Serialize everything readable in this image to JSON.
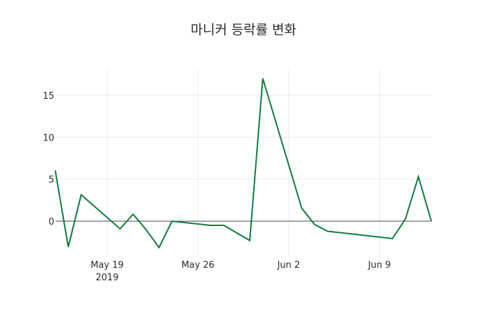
{
  "chart_data": {
    "type": "line",
    "title": "마니커 등락률 변화",
    "xlabel": "",
    "ylabel": "",
    "x": [
      "2019-05-15",
      "2019-05-16",
      "2019-05-17",
      "2019-05-20",
      "2019-05-21",
      "2019-05-22",
      "2019-05-23",
      "2019-05-24",
      "2019-05-27",
      "2019-05-28",
      "2019-05-30",
      "2019-05-31",
      "2019-06-03",
      "2019-06-04",
      "2019-06-05",
      "2019-06-10",
      "2019-06-11",
      "2019-06-12",
      "2019-06-13"
    ],
    "series": [
      {
        "name": "등락률",
        "color": "#0e7a3c",
        "values": [
          6.05,
          -3.07,
          3.15,
          -0.91,
          0.83,
          -1.0,
          -3.15,
          0.0,
          -0.5,
          -0.5,
          -2.3,
          17.0,
          1.57,
          -0.4,
          -1.2,
          -2.07,
          0.25,
          5.3,
          0.0
        ]
      }
    ],
    "yticks": [
      0,
      5,
      10,
      15
    ],
    "xticks": [
      {
        "date": "2019-05-19",
        "label": "May 19",
        "sublabel": "2019"
      },
      {
        "date": "2019-05-26",
        "label": "May 26"
      },
      {
        "date": "2019-06-02",
        "label": "Jun 2"
      },
      {
        "date": "2019-06-09",
        "label": "Jun 9"
      }
    ],
    "ylim": [
      -3.6,
      18.0
    ],
    "xlim": [
      "2019-05-15",
      "2019-06-13"
    ],
    "grid": true,
    "legend": "none"
  }
}
